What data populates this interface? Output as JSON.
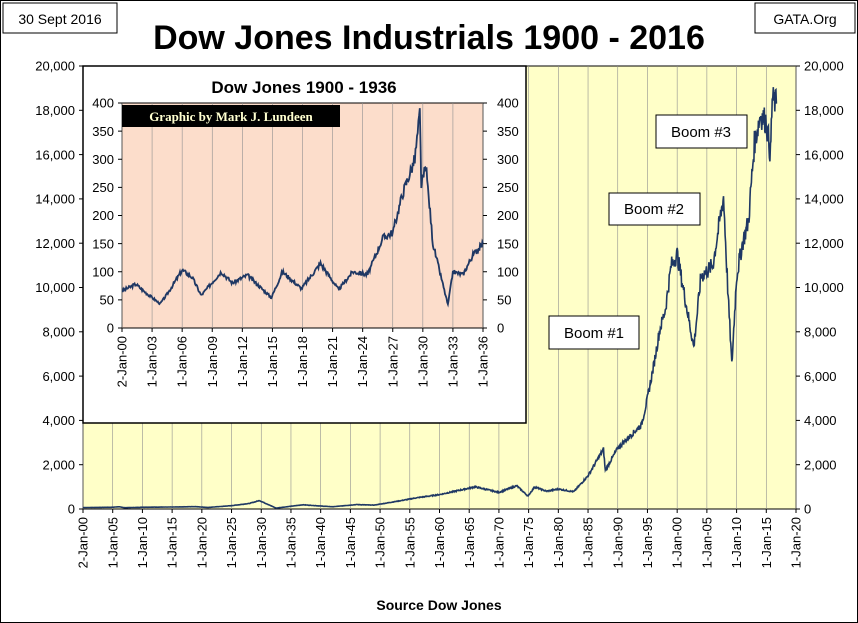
{
  "date_label": "30 Sept 2016",
  "source_label": "GATA.Org",
  "footer_label": "Source Dow Jones",
  "colors": {
    "plot_bg": "#FFFFC8",
    "inset_bg": "#FCDDCB",
    "line": "#1F3864",
    "grid": "#909090",
    "credit_bg": "#000000",
    "credit_text": "#FFFFD0"
  },
  "chart_data": [
    {
      "type": "line",
      "title": "Dow Jones Industrials 1900 - 2016",
      "xlabel": "",
      "ylabel": "",
      "ylim": [
        0,
        20000
      ],
      "yticks": [
        "0",
        "2,000",
        "4,000",
        "6,000",
        "8,000",
        "10,000",
        "12,000",
        "14,000",
        "16,000",
        "18,000",
        "20,000"
      ],
      "xticks": [
        "2-Jan-00",
        "1-Jan-05",
        "1-Jan-10",
        "1-Jan-15",
        "1-Jan-20",
        "1-Jan-25",
        "1-Jan-30",
        "1-Jan-35",
        "1-Jan-40",
        "1-Jan-45",
        "1-Jan-50",
        "1-Jan-55",
        "1-Jan-60",
        "1-Jan-65",
        "1-Jan-70",
        "1-Jan-75",
        "1-Jan-80",
        "1-Jan-85",
        "1-Jan-90",
        "1-Jan-95",
        "1-Jan-00",
        "1-Jan-05",
        "1-Jan-10",
        "1-Jan-15",
        "1-Jan-20"
      ],
      "grid": "vertical",
      "annotations": [
        "Boom #1",
        "Boom #2",
        "Boom #3"
      ],
      "series": [
        {
          "x": [
            1900,
            1905,
            1906,
            1907,
            1910,
            1915,
            1919,
            1921,
            1925,
            1928,
            1929.7,
            1932.5,
            1937,
            1942,
            1946,
            1949,
            1954,
            1956,
            1960,
            1966,
            1970,
            1973,
            1974.9,
            1976,
            1978,
            1980,
            1982.6,
            1985,
            1987.6,
            1987.9,
            1990,
            1994,
            1995,
            1996,
            1997,
            1998,
            1999,
            2000,
            2001,
            2002.8,
            2004,
            2006,
            2007.8,
            2008.5,
            2009.2,
            2010,
            2011,
            2012,
            2013,
            2014,
            2015,
            2015.7,
            2016,
            2016.7
          ],
          "y": [
            66,
            80,
            103,
            58,
            80,
            90,
            107,
            70,
            150,
            250,
            381,
            41,
            190,
            100,
            200,
            175,
            400,
            500,
            650,
            1000,
            750,
            1050,
            580,
            1000,
            800,
            900,
            780,
            1500,
            2700,
            1750,
            2750,
            3800,
            5000,
            6400,
            8000,
            9000,
            11000,
            11500,
            10000,
            7300,
            10500,
            11000,
            14100,
            10000,
            6500,
            10500,
            12000,
            13000,
            16500,
            17800,
            17500,
            16000,
            18500,
            18300
          ]
        }
      ]
    },
    {
      "type": "line",
      "title": "Dow Jones 1900 - 1936",
      "credit": "Graphic by Mark J. Lundeen",
      "ylim": [
        0,
        400
      ],
      "yticks": [
        "0",
        "50",
        "100",
        "150",
        "200",
        "250",
        "300",
        "350",
        "400"
      ],
      "xticks": [
        "2-Jan-00",
        "1-Jan-03",
        "1-Jan-06",
        "1-Jan-09",
        "1-Jan-12",
        "1-Jan-15",
        "1-Jan-18",
        "1-Jan-21",
        "1-Jan-24",
        "1-Jan-27",
        "1-Jan-30",
        "1-Jan-33",
        "1-Jan-36"
      ],
      "grid": "vertical",
      "series": [
        {
          "x": [
            1900,
            1901.4,
            1902,
            1903.8,
            1904.5,
            1906,
            1907,
            1907.9,
            1909.9,
            1911,
            1912.5,
            1914.9,
            1916,
            1917.9,
            1919.8,
            1921.6,
            1923,
            1924.5,
            1926,
            1927,
            1928,
            1929.2,
            1929.7,
            1929.85,
            1930.3,
            1931,
            1932.5,
            1933,
            1934,
            1935,
            1936
          ],
          "y": [
            66,
            78,
            68,
            43,
            60,
            103,
            90,
            58,
            100,
            80,
            94,
            54,
            100,
            70,
            115,
            68,
            100,
            95,
            160,
            170,
            240,
            300,
            381,
            250,
            290,
            150,
            41,
            100,
            95,
            130,
            150
          ]
        }
      ]
    }
  ]
}
